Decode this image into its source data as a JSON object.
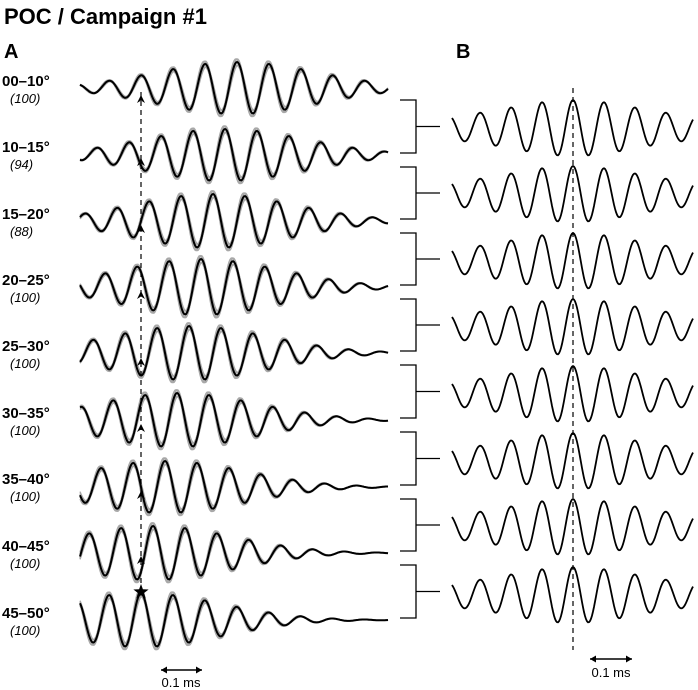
{
  "title": "POC / Campaign #1",
  "panel_a_label": "A",
  "panel_b_label": "B",
  "rows": [
    {
      "bin": "00–10°",
      "count": "(100)"
    },
    {
      "bin": "10–15°",
      "count": "(94)"
    },
    {
      "bin": "15–20°",
      "count": "(88)"
    },
    {
      "bin": "20–25°",
      "count": "(100)"
    },
    {
      "bin": "25–30°",
      "count": "(100)"
    },
    {
      "bin": "30–35°",
      "count": "(100)"
    },
    {
      "bin": "35–40°",
      "count": "(100)"
    },
    {
      "bin": "40–45°",
      "count": "(100)"
    },
    {
      "bin": "45–50°",
      "count": "(100)"
    }
  ],
  "scale_bar_a": "0.1 ms",
  "scale_bar_b": "0.1 ms",
  "colors": {
    "trace": "#000000",
    "individual_traces": "#a8a8a8"
  },
  "markers": {
    "reference_peak": "star-icon",
    "peak_shift": "arrowhead-icon"
  }
}
